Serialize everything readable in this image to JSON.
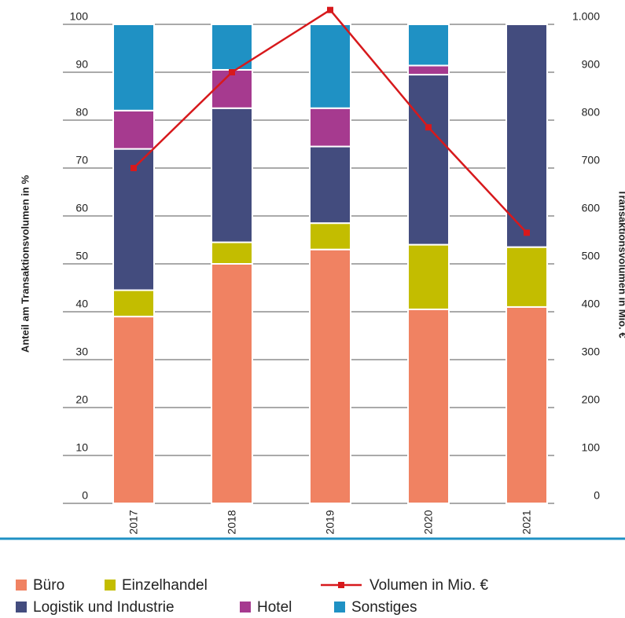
{
  "chart_data": {
    "type": "stacked-bar-line",
    "y_label": "Anteil am Transaktionsvolumen in %",
    "y2_label": "Transaktionsvolumen in Mio. €",
    "categories": [
      "2017",
      "2018",
      "2019",
      "2020",
      "2021"
    ],
    "series": [
      {
        "name": "Büro",
        "color": "#f08262",
        "values": [
          39,
          50,
          53,
          40.5,
          41
        ]
      },
      {
        "name": "Einzelhandel",
        "color": "#c3bd00",
        "values": [
          5.5,
          4.5,
          5.5,
          13.5,
          12.5
        ]
      },
      {
        "name": "Logistik und Industrie",
        "color": "#434c7e",
        "values": [
          29.5,
          28,
          16,
          35.5,
          46.5
        ]
      },
      {
        "name": "Hotel",
        "color": "#a63a8f",
        "values": [
          8,
          8,
          8,
          1.9,
          0
        ]
      },
      {
        "name": "Sonstiges",
        "color": "#1f91c4",
        "values": [
          18,
          9.5,
          17.5,
          8.6,
          0
        ]
      },
      {
        "name": "Volumen in Mio. €",
        "color": "#d7191c",
        "axis": "y2",
        "values": [
          700,
          900,
          1030,
          785,
          565
        ]
      }
    ],
    "ylim": [
      0,
      100
    ],
    "yticks": [
      0,
      10,
      20,
      30,
      40,
      50,
      60,
      70,
      80,
      90,
      100
    ],
    "y2lim": [
      0,
      1000
    ],
    "y2ticks": [
      0,
      100,
      200,
      300,
      400,
      500,
      600,
      700,
      800,
      900,
      {
        "value": 1000,
        "label": "1.000"
      }
    ],
    "grid": true
  }
}
